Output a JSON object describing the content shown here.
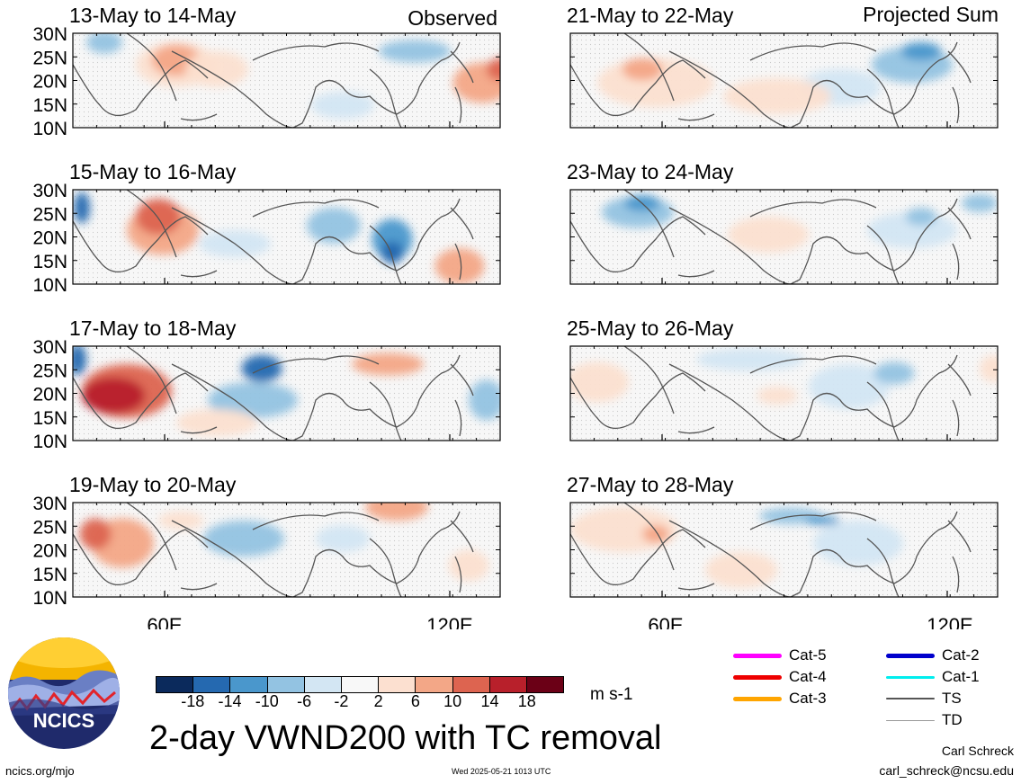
{
  "header": {
    "observed": "Observed",
    "projected": "Projected Sum"
  },
  "panels": [
    {
      "title": "13-May to 14-May",
      "column": "observed"
    },
    {
      "title": "15-May to 16-May",
      "column": "observed"
    },
    {
      "title": "17-May to 18-May",
      "column": "observed"
    },
    {
      "title": "19-May to 20-May",
      "column": "observed"
    },
    {
      "title": "21-May to 22-May",
      "column": "projected"
    },
    {
      "title": "23-May to 24-May",
      "column": "projected"
    },
    {
      "title": "25-May to 26-May",
      "column": "projected"
    },
    {
      "title": "27-May to 28-May",
      "column": "projected"
    }
  ],
  "lat_labels": [
    "30N",
    "25N",
    "20N",
    "15N",
    "10N"
  ],
  "lon_labels": [
    "60E",
    "120E"
  ],
  "colorbar": {
    "colors": [
      "#0b2a5c",
      "#2569b0",
      "#4a97cc",
      "#93c3e2",
      "#d3e6f3",
      "#f8f8f8",
      "#fce0d0",
      "#f3a787",
      "#dd6450",
      "#b8202b",
      "#6b0016"
    ],
    "ticks": [
      "-18",
      "-14",
      "-10",
      "-6",
      "-2",
      "2",
      "6",
      "10",
      "14",
      "18"
    ],
    "units": "m s-1"
  },
  "title": "2-day VWND200 with TC removal",
  "logo_text": "NCICS",
  "legend": [
    {
      "label": "Cat-5",
      "color": "#ff00ff"
    },
    {
      "label": "Cat-4",
      "color": "#ee0000"
    },
    {
      "label": "Cat-3",
      "color": "#ffa500"
    },
    {
      "label": "Cat-2",
      "color": "#0000cc"
    },
    {
      "label": "Cat-1",
      "color": "#00eeee"
    },
    {
      "label": "TS",
      "color": "#555555"
    },
    {
      "label": "TD",
      "color": "#999999"
    }
  ],
  "footer": {
    "left": "ncics.org/mjo",
    "timestamp": "Wed 2025-05-21 1013 UTC",
    "author": "Carl Schreck",
    "email": "carl_schreck@ncsu.edu"
  }
}
